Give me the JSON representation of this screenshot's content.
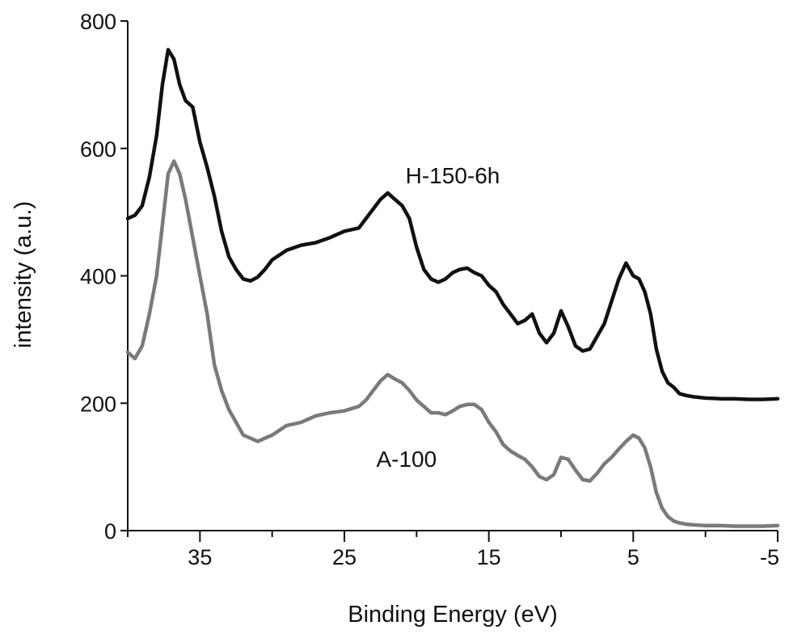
{
  "chart_data": {
    "type": "line",
    "title": "",
    "xlabel": "Binding Energy (eV)",
    "ylabel": "intensity (a.u.)",
    "xlim": [
      40,
      -5
    ],
    "ylim": [
      0,
      800
    ],
    "x_reversed": true,
    "grid": false,
    "x_ticks": [
      {
        "value": 35,
        "label": "35"
      },
      {
        "value": 25,
        "label": "25"
      },
      {
        "value": 15,
        "label": "15"
      },
      {
        "value": 5,
        "label": "5"
      },
      {
        "value": -5,
        "label": "-5"
      }
    ],
    "y_ticks": [
      {
        "value": 0,
        "label": "0"
      },
      {
        "value": 200,
        "label": "200"
      },
      {
        "value": 400,
        "label": "400"
      },
      {
        "value": 600,
        "label": "600"
      },
      {
        "value": 800,
        "label": "800"
      }
    ],
    "series": [
      {
        "name": "H-150-6h",
        "color": "#111111",
        "points": [
          [
            40,
            490
          ],
          [
            39.5,
            495
          ],
          [
            39,
            510
          ],
          [
            38.5,
            555
          ],
          [
            38,
            620
          ],
          [
            37.6,
            700
          ],
          [
            37.2,
            755
          ],
          [
            36.8,
            740
          ],
          [
            36.4,
            700
          ],
          [
            36,
            675
          ],
          [
            35.5,
            665
          ],
          [
            35,
            610
          ],
          [
            34.5,
            570
          ],
          [
            34,
            525
          ],
          [
            33.5,
            470
          ],
          [
            33,
            430
          ],
          [
            32.5,
            410
          ],
          [
            32,
            395
          ],
          [
            31.5,
            392
          ],
          [
            31,
            398
          ],
          [
            30.5,
            410
          ],
          [
            30,
            425
          ],
          [
            29,
            440
          ],
          [
            28,
            448
          ],
          [
            27,
            452
          ],
          [
            26,
            460
          ],
          [
            25,
            470
          ],
          [
            24,
            475
          ],
          [
            23.5,
            490
          ],
          [
            23,
            505
          ],
          [
            22.5,
            520
          ],
          [
            22,
            530
          ],
          [
            21.5,
            520
          ],
          [
            21,
            510
          ],
          [
            20.5,
            490
          ],
          [
            20,
            445
          ],
          [
            19.5,
            410
          ],
          [
            19,
            395
          ],
          [
            18.5,
            390
          ],
          [
            18,
            395
          ],
          [
            17.5,
            405
          ],
          [
            17,
            410
          ],
          [
            16.5,
            412
          ],
          [
            16,
            405
          ],
          [
            15.5,
            400
          ],
          [
            15,
            385
          ],
          [
            14.5,
            375
          ],
          [
            14,
            355
          ],
          [
            13.5,
            340
          ],
          [
            13,
            325
          ],
          [
            12.5,
            330
          ],
          [
            12,
            340
          ],
          [
            11.5,
            310
          ],
          [
            11,
            295
          ],
          [
            10.5,
            310
          ],
          [
            10,
            345
          ],
          [
            9.5,
            320
          ],
          [
            9,
            290
          ],
          [
            8.5,
            282
          ],
          [
            8,
            285
          ],
          [
            7.5,
            305
          ],
          [
            7,
            325
          ],
          [
            6.5,
            360
          ],
          [
            6,
            395
          ],
          [
            5.5,
            420
          ],
          [
            5,
            400
          ],
          [
            4.6,
            395
          ],
          [
            4.2,
            375
          ],
          [
            3.8,
            340
          ],
          [
            3.4,
            285
          ],
          [
            3,
            250
          ],
          [
            2.6,
            232
          ],
          [
            2.2,
            225
          ],
          [
            1.8,
            215
          ],
          [
            1.3,
            212
          ],
          [
            0.8,
            210
          ],
          [
            0,
            208
          ],
          [
            -1,
            207
          ],
          [
            -2,
            207
          ],
          [
            -3,
            206
          ],
          [
            -4,
            206
          ],
          [
            -5,
            207
          ]
        ]
      },
      {
        "name": "A-100",
        "color": "#7a7a7a",
        "points": [
          [
            40,
            280
          ],
          [
            39.5,
            270
          ],
          [
            39,
            290
          ],
          [
            38.5,
            340
          ],
          [
            38,
            400
          ],
          [
            37.6,
            480
          ],
          [
            37.2,
            560
          ],
          [
            36.8,
            580
          ],
          [
            36.4,
            560
          ],
          [
            36,
            520
          ],
          [
            35.5,
            460
          ],
          [
            35,
            400
          ],
          [
            34.5,
            340
          ],
          [
            34,
            260
          ],
          [
            33.5,
            220
          ],
          [
            33,
            190
          ],
          [
            32.5,
            170
          ],
          [
            32,
            150
          ],
          [
            31.5,
            145
          ],
          [
            31,
            140
          ],
          [
            30.5,
            145
          ],
          [
            30,
            150
          ],
          [
            29,
            165
          ],
          [
            28,
            170
          ],
          [
            27,
            180
          ],
          [
            26,
            185
          ],
          [
            25,
            188
          ],
          [
            24,
            195
          ],
          [
            23.5,
            205
          ],
          [
            23,
            220
          ],
          [
            22.5,
            235
          ],
          [
            22,
            245
          ],
          [
            21.5,
            238
          ],
          [
            21,
            232
          ],
          [
            20.5,
            220
          ],
          [
            20,
            205
          ],
          [
            19.5,
            195
          ],
          [
            19,
            185
          ],
          [
            18.5,
            185
          ],
          [
            18,
            182
          ],
          [
            17.5,
            188
          ],
          [
            17,
            195
          ],
          [
            16.5,
            198
          ],
          [
            16,
            198
          ],
          [
            15.5,
            190
          ],
          [
            15,
            170
          ],
          [
            14.5,
            155
          ],
          [
            14,
            135
          ],
          [
            13.5,
            125
          ],
          [
            13,
            118
          ],
          [
            12.5,
            112
          ],
          [
            12,
            100
          ],
          [
            11.5,
            85
          ],
          [
            11,
            80
          ],
          [
            10.5,
            88
          ],
          [
            10,
            115
          ],
          [
            9.5,
            112
          ],
          [
            9,
            95
          ],
          [
            8.5,
            80
          ],
          [
            8,
            78
          ],
          [
            7.5,
            90
          ],
          [
            7,
            105
          ],
          [
            6.5,
            115
          ],
          [
            6,
            128
          ],
          [
            5.5,
            140
          ],
          [
            5,
            150
          ],
          [
            4.6,
            145
          ],
          [
            4.2,
            130
          ],
          [
            3.8,
            100
          ],
          [
            3.4,
            60
          ],
          [
            3,
            35
          ],
          [
            2.6,
            22
          ],
          [
            2.2,
            15
          ],
          [
            1.8,
            12
          ],
          [
            1.3,
            10
          ],
          [
            0.8,
            9
          ],
          [
            0,
            8
          ],
          [
            -1,
            8
          ],
          [
            -2,
            7
          ],
          [
            -3,
            7
          ],
          [
            -4,
            7
          ],
          [
            -5,
            8
          ]
        ]
      }
    ],
    "annotations": [
      {
        "text": "H-150-6h",
        "x": 17.5,
        "y": 545,
        "series": "H-150-6h"
      },
      {
        "text": "A-100",
        "x": 20.7,
        "y": 100,
        "series": "A-100"
      }
    ]
  }
}
